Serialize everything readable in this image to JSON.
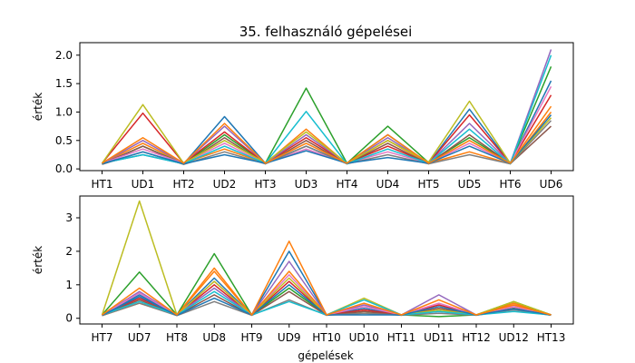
{
  "figure_title": "35. felhasználó gépelései",
  "xlabel": "gépelések",
  "ylabel": "érték",
  "palette": [
    "#1f77b4",
    "#ff7f0e",
    "#2ca02c",
    "#d62728",
    "#9467bd",
    "#8c564b",
    "#e377c2",
    "#7f7f7f",
    "#bcbd22",
    "#17becf"
  ],
  "chart_data": [
    {
      "type": "line",
      "title": "35. felhasználó gépelései",
      "xlabel": "",
      "ylabel": "érték",
      "categories": [
        "HT1",
        "UD1",
        "HT2",
        "UD2",
        "HT3",
        "UD3",
        "HT4",
        "UD4",
        "HT5",
        "UD5",
        "HT6",
        "UD6"
      ],
      "ylim": [
        -0.03,
        2.22
      ],
      "yticks": [
        0.0,
        0.5,
        1.0,
        1.5,
        2.0
      ],
      "ytick_labels": [
        "0.0",
        "0.5",
        "1.0",
        "1.5",
        "2.0"
      ],
      "grid": false,
      "series": [
        {
          "values": [
            0.1,
            0.25,
            0.09,
            0.92,
            0.1,
            0.4,
            0.1,
            0.6,
            0.1,
            1.05,
            0.1,
            1.55
          ]
        },
        {
          "values": [
            0.1,
            0.45,
            0.1,
            0.35,
            0.1,
            0.7,
            0.09,
            0.5,
            0.1,
            0.3,
            0.09,
            1.0
          ]
        },
        {
          "values": [
            0.08,
            0.4,
            0.09,
            0.6,
            0.1,
            1.42,
            0.1,
            0.75,
            0.11,
            0.55,
            0.1,
            1.8
          ]
        },
        {
          "values": [
            0.1,
            0.98,
            0.1,
            0.65,
            0.1,
            0.55,
            0.1,
            0.4,
            0.1,
            0.95,
            0.1,
            1.3
          ]
        },
        {
          "values": [
            0.1,
            0.5,
            0.1,
            0.75,
            0.1,
            0.6,
            0.1,
            0.55,
            0.1,
            0.8,
            0.1,
            2.1
          ]
        },
        {
          "values": [
            0.09,
            0.4,
            0.08,
            0.55,
            0.09,
            0.5,
            0.09,
            0.45,
            0.09,
            0.6,
            0.09,
            0.75
          ]
        },
        {
          "values": [
            0.1,
            0.35,
            0.1,
            0.45,
            0.1,
            0.35,
            0.1,
            0.3,
            0.1,
            0.45,
            0.1,
            1.45
          ]
        },
        {
          "values": [
            0.08,
            0.3,
            0.08,
            0.3,
            0.09,
            0.4,
            0.09,
            0.25,
            0.09,
            0.25,
            0.09,
            0.85
          ]
        },
        {
          "values": [
            0.1,
            1.13,
            0.1,
            0.5,
            0.11,
            0.65,
            0.1,
            0.5,
            0.12,
            1.19,
            0.1,
            0.9
          ]
        },
        {
          "values": [
            0.1,
            0.25,
            0.09,
            0.4,
            0.1,
            1.01,
            0.09,
            0.35,
            0.1,
            0.7,
            0.09,
            2.0
          ]
        },
        {
          "values": [
            0.09,
            0.3,
            0.09,
            0.25,
            0.1,
            0.32,
            0.1,
            0.2,
            0.1,
            0.4,
            0.1,
            0.95
          ]
        },
        {
          "values": [
            0.1,
            0.55,
            0.1,
            0.8,
            0.1,
            0.45,
            0.1,
            0.6,
            0.1,
            0.5,
            0.1,
            1.1
          ]
        }
      ]
    },
    {
      "type": "line",
      "title": "",
      "xlabel": "gépelések",
      "ylabel": "érték",
      "categories": [
        "HT7",
        "UD7",
        "HT8",
        "UD8",
        "HT9",
        "UD9",
        "HT10",
        "UD10",
        "HT11",
        "UD11",
        "HT12",
        "UD12",
        "HT13"
      ],
      "ylim": [
        -0.17,
        3.65
      ],
      "yticks": [
        0,
        1,
        2,
        3
      ],
      "ytick_labels": [
        "0",
        "1",
        "2",
        "3"
      ],
      "grid": false,
      "series": [
        {
          "values": [
            0.1,
            0.7,
            0.1,
            1.2,
            0.1,
            2.0,
            0.1,
            0.3,
            0.1,
            0.2,
            0.1,
            0.3,
            0.1
          ]
        },
        {
          "values": [
            0.08,
            0.45,
            0.1,
            1.5,
            0.1,
            2.3,
            0.1,
            0.2,
            0.1,
            0.3,
            0.1,
            0.45,
            0.1
          ]
        },
        {
          "values": [
            0.1,
            1.38,
            0.1,
            1.93,
            0.1,
            0.9,
            0.1,
            0.15,
            0.1,
            0.05,
            0.1,
            0.5,
            0.1
          ]
        },
        {
          "values": [
            0.1,
            0.6,
            0.1,
            1.0,
            0.1,
            1.1,
            0.1,
            0.25,
            0.1,
            0.4,
            0.1,
            0.4,
            0.1
          ]
        },
        {
          "values": [
            0.1,
            0.8,
            0.1,
            0.9,
            0.1,
            1.7,
            0.1,
            0.4,
            0.1,
            0.7,
            0.1,
            0.35,
            0.1
          ]
        },
        {
          "values": [
            0.09,
            0.55,
            0.09,
            0.7,
            0.09,
            0.8,
            0.09,
            0.2,
            0.09,
            0.3,
            0.09,
            0.3,
            0.09
          ]
        },
        {
          "values": [
            0.1,
            0.75,
            0.1,
            1.1,
            0.1,
            1.3,
            0.1,
            0.35,
            0.1,
            0.45,
            0.1,
            0.35,
            0.1
          ]
        },
        {
          "values": [
            0.08,
            0.45,
            0.08,
            0.5,
            0.09,
            0.55,
            0.09,
            0.15,
            0.09,
            0.15,
            0.09,
            0.25,
            0.09
          ]
        },
        {
          "values": [
            0.1,
            3.5,
            0.1,
            1.1,
            0.1,
            1.2,
            0.1,
            0.6,
            0.1,
            0.25,
            0.1,
            0.5,
            0.1
          ]
        },
        {
          "values": [
            0.1,
            0.5,
            0.1,
            0.8,
            0.1,
            0.5,
            0.1,
            0.55,
            0.1,
            0.2,
            0.1,
            0.2,
            0.1
          ]
        },
        {
          "values": [
            0.09,
            0.65,
            0.09,
            0.6,
            0.1,
            1.0,
            0.1,
            0.1,
            0.1,
            0.35,
            0.1,
            0.28,
            0.1
          ]
        },
        {
          "values": [
            0.1,
            0.9,
            0.1,
            1.4,
            0.1,
            1.4,
            0.1,
            0.45,
            0.1,
            0.55,
            0.1,
            0.4,
            0.1
          ]
        }
      ]
    }
  ]
}
